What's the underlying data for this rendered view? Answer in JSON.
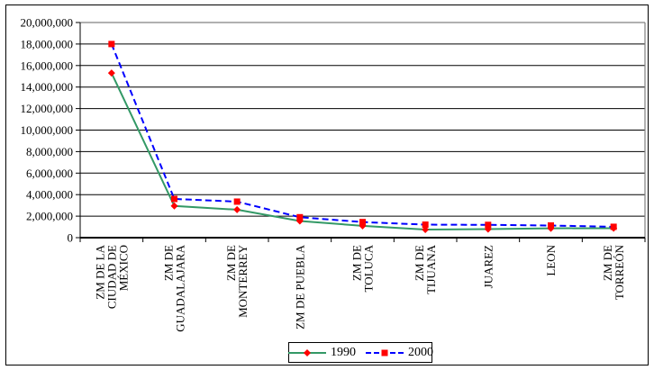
{
  "chart_data": {
    "type": "line",
    "title": "",
    "xlabel": "",
    "ylabel": "",
    "grid": true,
    "legend_position": "bottom-center",
    "ylim": [
      0,
      20000000
    ],
    "y_ticks": [
      0,
      2000000,
      4000000,
      6000000,
      8000000,
      10000000,
      12000000,
      14000000,
      16000000,
      18000000,
      20000000
    ],
    "y_tick_labels": [
      "0",
      "2,000,000",
      "4,000,000",
      "6,000,000",
      "8,000,000",
      "10,000,000",
      "12,000,000",
      "14,000,000",
      "16,000,000",
      "18,000,000",
      "20,000,000"
    ],
    "gridline_color": "#000000",
    "axis_color": "#000000",
    "plot_border_color": "#808080",
    "categories": [
      {
        "label": "ZM DE LA CIUDAD DE MÉXICO",
        "lines": [
          "ZM DE LA",
          "CIUDAD DE",
          "MÉXICO"
        ]
      },
      {
        "label": "ZM DE GUADALAJARA",
        "lines": [
          "ZM DE",
          "GUADALAJARA"
        ]
      },
      {
        "label": "ZM DE MONTERREY",
        "lines": [
          "ZM DE",
          "MONTERREY"
        ]
      },
      {
        "label": "ZM DE PUEBLA",
        "lines": [
          "ZM DE PUEBLA"
        ]
      },
      {
        "label": "ZM DE TOLUCA",
        "lines": [
          "ZM DE",
          "TOLUCA"
        ]
      },
      {
        "label": "ZM DE TIJUANA",
        "lines": [
          "ZM DE",
          "TIJUANA"
        ]
      },
      {
        "label": "JUAREZ",
        "lines": [
          "JUAREZ"
        ]
      },
      {
        "label": "LEON",
        "lines": [
          "LEON"
        ]
      },
      {
        "label": "ZM DE TORREÓN",
        "lines": [
          "ZM DE",
          "TORREÓN"
        ]
      }
    ],
    "series": [
      {
        "name": "1990",
        "line_color": "#339966",
        "line_style": "solid",
        "marker": "diamond",
        "marker_color": "#FF0000",
        "values": [
          15300000,
          2950000,
          2600000,
          1550000,
          1100000,
          750000,
          790000,
          870000,
          880000
        ]
      },
      {
        "name": "2000",
        "line_color": "#0000FF",
        "line_style": "dashed",
        "marker": "square",
        "marker_color": "#FF0000",
        "values": [
          18000000,
          3600000,
          3350000,
          1900000,
          1450000,
          1210000,
          1190000,
          1130000,
          1010000
        ]
      }
    ]
  }
}
